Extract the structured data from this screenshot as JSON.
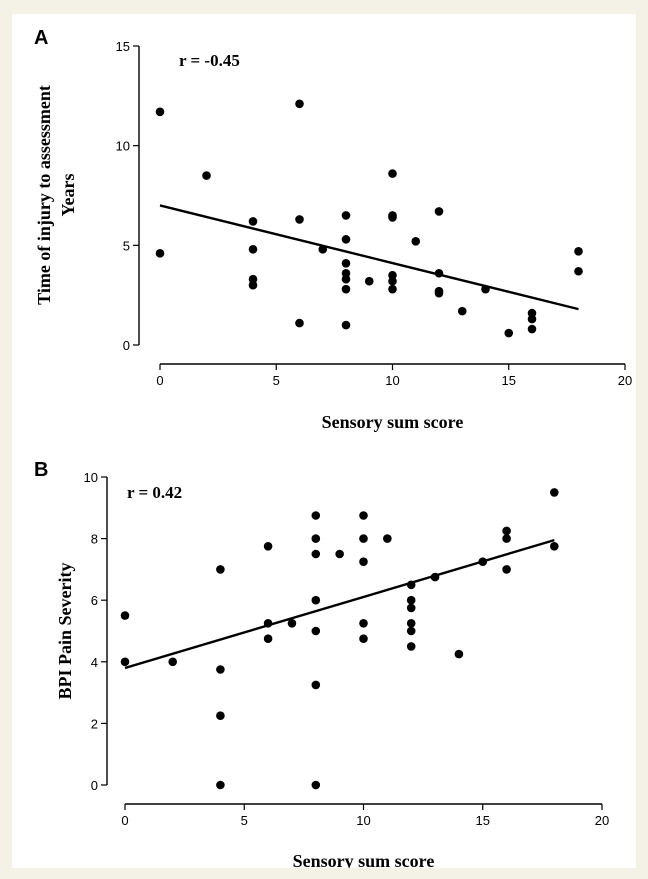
{
  "chart_data": [
    {
      "panel": "A",
      "type": "scatter",
      "title": "",
      "xlabel": "Sensory sum score",
      "ylabel_lines": [
        "Time of injury to assessment",
        "Years"
      ],
      "annotation": "r = -0.45",
      "xlim": [
        0,
        20
      ],
      "ylim": [
        0,
        15
      ],
      "xticks": [
        0,
        5,
        10,
        15,
        20
      ],
      "yticks": [
        0,
        5,
        10,
        15
      ],
      "grid": false,
      "points": [
        [
          0,
          11.7
        ],
        [
          0,
          4.6
        ],
        [
          2,
          8.5
        ],
        [
          4,
          6.2
        ],
        [
          4,
          4.8
        ],
        [
          4,
          3.3
        ],
        [
          4,
          3.0
        ],
        [
          6,
          12.1
        ],
        [
          6,
          6.3
        ],
        [
          6,
          1.1
        ],
        [
          7,
          4.8
        ],
        [
          8,
          6.5
        ],
        [
          8,
          5.3
        ],
        [
          8,
          4.1
        ],
        [
          8,
          3.6
        ],
        [
          8,
          3.3
        ],
        [
          8,
          2.8
        ],
        [
          8,
          1.0
        ],
        [
          9,
          3.2
        ],
        [
          10,
          8.6
        ],
        [
          10,
          6.5
        ],
        [
          10,
          6.4
        ],
        [
          10,
          3.5
        ],
        [
          10,
          3.2
        ],
        [
          10,
          2.8
        ],
        [
          11,
          5.2
        ],
        [
          12,
          6.7
        ],
        [
          12,
          3.6
        ],
        [
          12,
          2.7
        ],
        [
          12,
          2.6
        ],
        [
          13,
          1.7
        ],
        [
          14,
          2.8
        ],
        [
          15,
          0.6
        ],
        [
          16,
          1.6
        ],
        [
          16,
          1.3
        ],
        [
          16,
          0.8
        ],
        [
          18,
          4.7
        ],
        [
          18,
          3.7
        ]
      ],
      "fit_line": [
        [
          0,
          7.0
        ],
        [
          18,
          1.8
        ]
      ]
    },
    {
      "panel": "B",
      "type": "scatter",
      "title": "",
      "xlabel": "Sensory sum score",
      "ylabel_lines": [
        "BPI Pain Severity"
      ],
      "annotation": "r = 0.42",
      "xlim": [
        0,
        20
      ],
      "ylim": [
        0,
        10
      ],
      "xticks": [
        0,
        5,
        10,
        15,
        20
      ],
      "yticks": [
        0,
        2,
        4,
        6,
        8,
        10
      ],
      "grid": false,
      "points": [
        [
          0,
          5.5
        ],
        [
          0,
          4.0
        ],
        [
          2,
          4.0
        ],
        [
          4,
          7.0
        ],
        [
          4,
          3.75
        ],
        [
          4,
          2.25
        ],
        [
          4,
          0.0
        ],
        [
          6,
          7.75
        ],
        [
          6,
          5.25
        ],
        [
          6,
          4.75
        ],
        [
          7,
          5.25
        ],
        [
          8,
          8.75
        ],
        [
          8,
          8.0
        ],
        [
          8,
          7.5
        ],
        [
          8,
          6.0
        ],
        [
          8,
          5.0
        ],
        [
          8,
          3.25
        ],
        [
          8,
          0.0
        ],
        [
          9,
          7.5
        ],
        [
          10,
          8.75
        ],
        [
          10,
          8.0
        ],
        [
          10,
          7.25
        ],
        [
          10,
          5.25
        ],
        [
          10,
          4.75
        ],
        [
          11,
          8.0
        ],
        [
          12,
          6.5
        ],
        [
          12,
          6.0
        ],
        [
          12,
          5.75
        ],
        [
          12,
          5.25
        ],
        [
          12,
          5.0
        ],
        [
          12,
          4.5
        ],
        [
          13,
          6.75
        ],
        [
          14,
          4.25
        ],
        [
          15,
          7.25
        ],
        [
          16,
          8.25
        ],
        [
          16,
          8.0
        ],
        [
          16,
          7.0
        ],
        [
          18,
          9.5
        ],
        [
          18,
          7.75
        ]
      ],
      "fit_line": [
        [
          0,
          3.8
        ],
        [
          18,
          7.95
        ]
      ]
    }
  ]
}
